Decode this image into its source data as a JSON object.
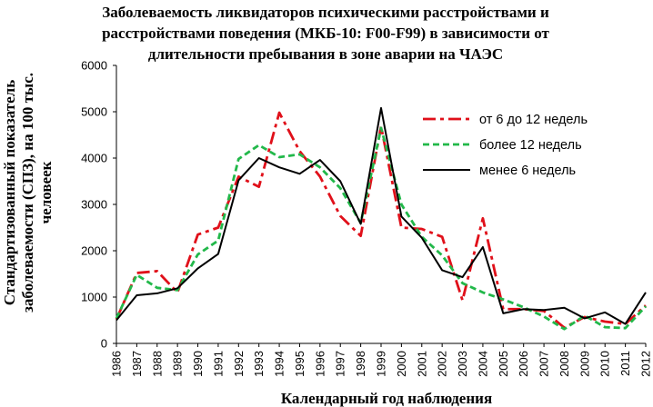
{
  "chart_data": {
    "type": "line",
    "title_lines": [
      "Заболеваемость ликвидаторов психическими расстройствами и",
      "расстройствами поведения (МКБ-10: F00-F99) в зависимости от",
      "длительности пребывания в зоне аварии на ЧАЭС"
    ],
    "xlabel": "Календарный год наблюдения",
    "ylabel_lines": [
      "Стандартизованный показатель",
      "заболеваемости (СПЗ), на 100 тыс.",
      "человеек"
    ],
    "ylim": [
      0,
      6000
    ],
    "yticks": [
      0,
      1000,
      2000,
      3000,
      4000,
      5000,
      6000
    ],
    "x": [
      1986,
      1987,
      1988,
      1989,
      1990,
      1991,
      1992,
      1993,
      1994,
      1995,
      1996,
      1997,
      1998,
      1999,
      2000,
      2001,
      2002,
      2003,
      2004,
      2005,
      2006,
      2007,
      2008,
      2009,
      2010,
      2011,
      2012
    ],
    "grid": false,
    "legend_position": "top-right",
    "series": [
      {
        "name": "от 6 до 12 недель",
        "color": "#e0101a",
        "dash": "dashdot",
        "values": [
          520,
          1520,
          1560,
          1100,
          2350,
          2500,
          3600,
          3380,
          4980,
          4150,
          3600,
          2750,
          2320,
          4680,
          2500,
          2470,
          2300,
          930,
          2700,
          740,
          740,
          700,
          340,
          570,
          470,
          420,
          820
        ]
      },
      {
        "name": "более 12 недель",
        "color": "#22b84a",
        "dash": "dashed",
        "values": [
          540,
          1480,
          1200,
          1150,
          1920,
          2220,
          3980,
          4280,
          4020,
          4080,
          3800,
          3350,
          2600,
          4650,
          3000,
          2300,
          1900,
          1300,
          1100,
          950,
          780,
          580,
          310,
          600,
          350,
          330,
          800
        ]
      },
      {
        "name": "менее 6 недель",
        "color": "#000000",
        "dash": "solid",
        "values": [
          500,
          1040,
          1080,
          1190,
          1620,
          1930,
          3520,
          4000,
          3800,
          3660,
          3960,
          3500,
          2580,
          5080,
          2740,
          2280,
          1580,
          1430,
          2080,
          650,
          740,
          720,
          770,
          540,
          670,
          420,
          1100
        ]
      }
    ]
  }
}
